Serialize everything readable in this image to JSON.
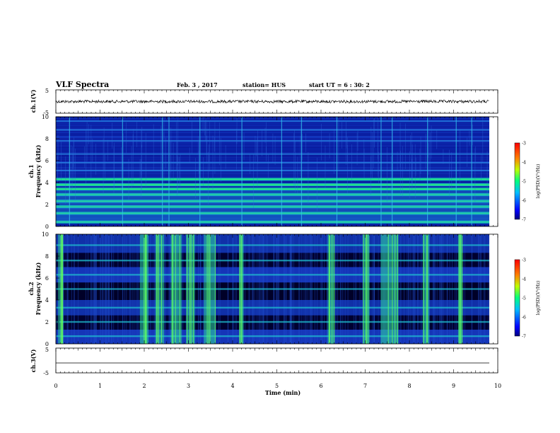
{
  "header": {
    "title": "VLF Spectra",
    "date": "Feb. 3 , 2017",
    "station": "station= HUS",
    "start_ut": "start UT =  6 : 30: 2"
  },
  "chart_data": [
    {
      "type": "line",
      "ylabel": "ch.1(V)",
      "y_ticks": [
        "5",
        "-5"
      ],
      "ylim": [
        -5,
        5
      ],
      "description_free": true,
      "trace": "noisy waveform near 0 V",
      "color": "#000000"
    },
    {
      "type": "heatmap",
      "ylabel": "ch.1\nFrequency (kHz)",
      "ylabel_line1": "ch.1",
      "ylabel_line2": "Frequency (kHz)",
      "y_ticks": [
        "0",
        "2",
        "4",
        "6",
        "8",
        "10"
      ],
      "ylim": [
        0,
        10
      ],
      "xlim": [
        0,
        10
      ],
      "colorbar": {
        "ticks": [
          "-3",
          "-4",
          "-5",
          "-6",
          "-7"
        ],
        "label": "log(PSD)(V²/Hz)",
        "range": [
          -7,
          -3
        ]
      },
      "band_frequencies_khz": [
        0.4,
        1.2,
        1.8,
        2.3,
        2.9,
        3.4,
        3.8,
        4.3,
        5.1,
        5.8,
        6.6,
        7.8,
        8.8,
        9.6
      ],
      "impulse_times_min": [
        0.3,
        1.5,
        2.4,
        2.55,
        3.25,
        4.2,
        5.1,
        5.55,
        6.35,
        7.35,
        7.6,
        8.4,
        9.05,
        9.4
      ]
    },
    {
      "type": "heatmap",
      "ylabel_line1": "ch.2",
      "ylabel_line2": "Frequency (kHz)",
      "y_ticks": [
        "0",
        "2",
        "4",
        "6",
        "8",
        "10"
      ],
      "ylim": [
        0,
        10
      ],
      "xlim": [
        0,
        10
      ],
      "colorbar": {
        "ticks": [
          "-3",
          "-4",
          "-5",
          "-6",
          "-7"
        ],
        "label": "log(PSD)(V²/Hz)",
        "range": [
          -7,
          -3
        ]
      },
      "band_frequencies_khz": [
        0.7,
        2.0,
        3.3,
        5.0,
        6.3,
        7.6,
        9.0
      ],
      "burst_intervals_min": [
        [
          0.05,
          0.15
        ],
        [
          1.9,
          2.1
        ],
        [
          2.25,
          2.45
        ],
        [
          2.6,
          2.85
        ],
        [
          2.95,
          3.15
        ],
        [
          3.35,
          3.6
        ],
        [
          4.15,
          4.25
        ],
        [
          6.15,
          6.3
        ],
        [
          6.95,
          7.1
        ],
        [
          7.35,
          7.75
        ],
        [
          8.3,
          8.45
        ],
        [
          9.1,
          9.2
        ]
      ]
    },
    {
      "type": "line",
      "ylabel": "ch.3(V)",
      "y_ticks": [
        "5",
        "-5"
      ],
      "ylim": [
        -5,
        5
      ],
      "trace": "flat line",
      "level_v": -1.5,
      "color": "#000000"
    }
  ],
  "x_axis": {
    "xlabel": "Time (min)",
    "ticks": [
      "0",
      "1",
      "2",
      "3",
      "4",
      "5",
      "6",
      "7",
      "8",
      "9",
      "10"
    ],
    "xlim": [
      0,
      10
    ]
  }
}
